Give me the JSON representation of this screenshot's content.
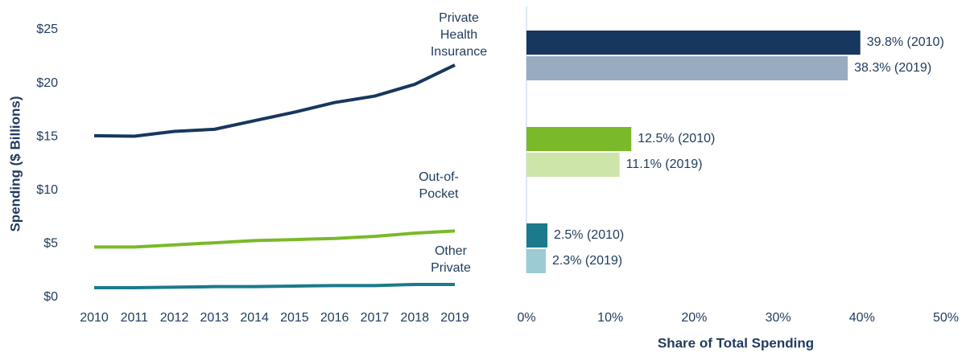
{
  "chart_data": [
    {
      "type": "line",
      "ylabel": "Spending ($ Billions)",
      "x": [
        "2010",
        "2011",
        "2012",
        "2013",
        "2014",
        "2015",
        "2016",
        "2017",
        "2018",
        "2019"
      ],
      "ylim": [
        0,
        25
      ],
      "yticks": [
        {
          "value": 0,
          "label": "$0"
        },
        {
          "value": 5,
          "label": "$5"
        },
        {
          "value": 10,
          "label": "$10"
        },
        {
          "value": 15,
          "label": "$15"
        },
        {
          "value": 20,
          "label": "$20"
        },
        {
          "value": 25,
          "label": "$25"
        }
      ],
      "series": [
        {
          "name": "Private Health Insurance",
          "color": "#17375e",
          "values": [
            15.1,
            15.05,
            15.5,
            15.7,
            16.5,
            17.3,
            18.2,
            18.8,
            19.9,
            21.7
          ]
        },
        {
          "name": "Out-of-Pocket",
          "color": "#7ab929",
          "values": [
            4.7,
            4.7,
            4.9,
            5.1,
            5.3,
            5.4,
            5.5,
            5.7,
            6.0,
            6.2
          ]
        },
        {
          "name": "Other Private",
          "color": "#1b7a8c",
          "values": [
            0.9,
            0.9,
            0.95,
            1.0,
            1.0,
            1.05,
            1.1,
            1.1,
            1.2,
            1.2
          ]
        }
      ]
    },
    {
      "type": "barh",
      "xlabel": "Share of Total Spending",
      "xlim": [
        0,
        50
      ],
      "xticks": [
        {
          "value": 0,
          "label": "0%"
        },
        {
          "value": 10,
          "label": "10%"
        },
        {
          "value": 20,
          "label": "20%"
        },
        {
          "value": 30,
          "label": "30%"
        },
        {
          "value": 40,
          "label": "40%"
        },
        {
          "value": 50,
          "label": "50%"
        }
      ],
      "series": [
        {
          "colors": [
            "#17375e",
            "#7ab929",
            "#1b7a8c"
          ],
          "values": [
            39.8,
            12.5,
            2.5
          ],
          "value_labels": [
            "39.8% (2010)",
            "12.5% (2010)",
            "2.5% (2010)"
          ]
        },
        {
          "colors": [
            "#98abbf",
            "#cde5a8",
            "#9ccbd4"
          ],
          "values": [
            38.3,
            11.1,
            2.3
          ],
          "value_labels": [
            "38.3% (2019)",
            "11.1% (2019)",
            "2.3% (2019)"
          ]
        }
      ]
    }
  ]
}
